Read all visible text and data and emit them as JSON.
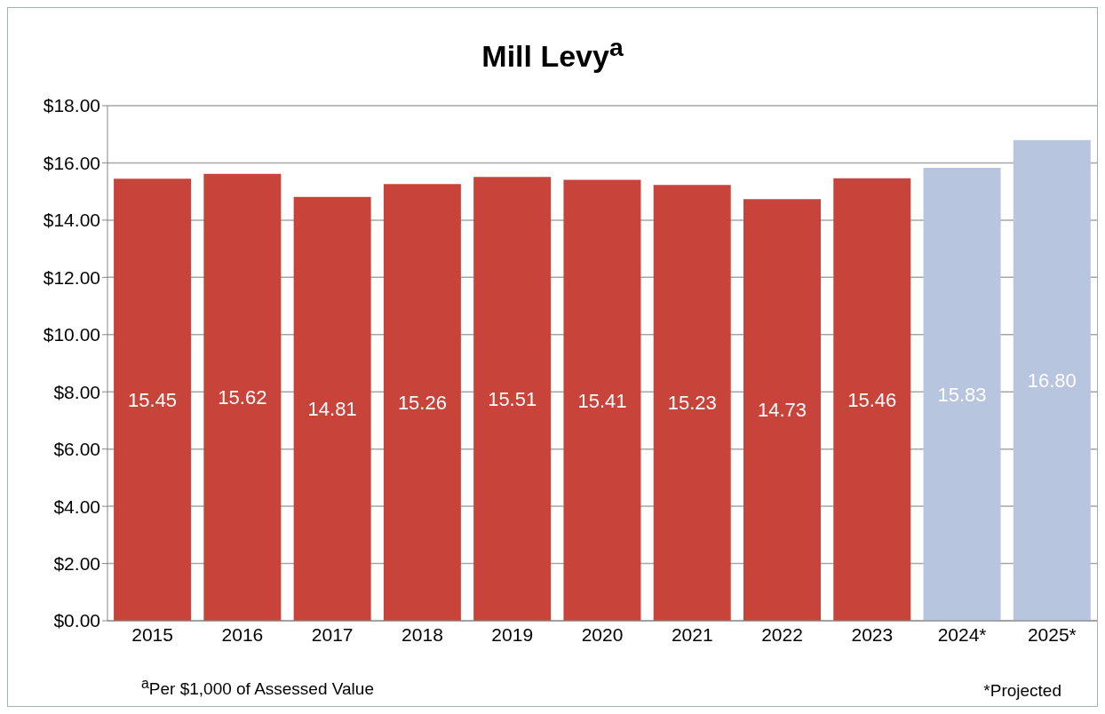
{
  "chart_data": {
    "type": "bar",
    "title": "Mill Levy$^{a}$",
    "categories": [
      "2015",
      "2016",
      "2017",
      "2018",
      "2019",
      "2020",
      "2021",
      "2022",
      "2023",
      "2024*",
      "2025*"
    ],
    "values": [
      15.45,
      15.62,
      14.81,
      15.26,
      15.51,
      15.41,
      15.23,
      14.73,
      15.46,
      15.83,
      16.8
    ],
    "value_labels": [
      "15.45",
      "15.62",
      "14.81",
      "15.26",
      "15.51",
      "15.41",
      "15.23",
      "14.73",
      "15.46",
      "15.83",
      "16.80"
    ],
    "colors": [
      "#c8433a",
      "#c8433a",
      "#c8433a",
      "#c8433a",
      "#c8433a",
      "#c8433a",
      "#c8433a",
      "#c8433a",
      "#c8433a",
      "#b8c5de",
      "#b8c5de"
    ],
    "ylim": [
      0,
      18
    ],
    "yticks": [
      {
        "value": 0,
        "label": "$0.00"
      },
      {
        "value": 2,
        "label": "$2.00"
      },
      {
        "value": 4,
        "label": "$4.00"
      },
      {
        "value": 6,
        "label": "$6.00"
      },
      {
        "value": 8,
        "label": "$8.00"
      },
      {
        "value": 10,
        "label": "$10.00"
      },
      {
        "value": 12,
        "label": "$12.00"
      },
      {
        "value": 14,
        "label": "$14.00"
      },
      {
        "value": 16,
        "label": "$16.00"
      },
      {
        "value": 18,
        "label": "$18.00"
      }
    ],
    "grid": "y",
    "legend": false,
    "annotations": [
      "$^{a}$Per $1,000 of Assessed Value",
      "*Projected"
    ]
  }
}
